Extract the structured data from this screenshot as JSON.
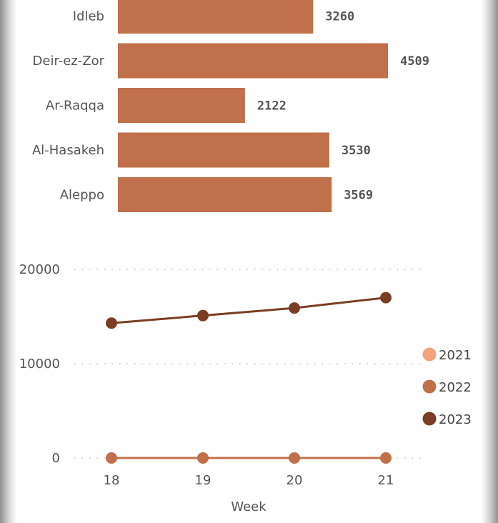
{
  "chart_data": [
    {
      "type": "bar",
      "orientation": "horizontal",
      "categories": [
        "Idleb",
        "Deir-ez-Zor",
        "Ar-Raqqa",
        "Al-Hasakeh",
        "Aleppo"
      ],
      "values": [
        3260,
        4509,
        2122,
        3530,
        3569
      ],
      "data_labels": [
        "3260",
        "4509",
        "2122",
        "3530",
        "3569"
      ],
      "bar_color": "#C0704A",
      "xlim": [
        0,
        4509
      ]
    },
    {
      "type": "line",
      "x": [
        18,
        19,
        20,
        21
      ],
      "xtick_labels": [
        "18",
        "19",
        "20",
        "21"
      ],
      "xlabel": "Week",
      "ylim": [
        0,
        20000
      ],
      "yticks": [
        0,
        10000,
        20000
      ],
      "ytick_labels": [
        "0",
        "10000",
        "20000"
      ],
      "grid": "horizontal-dotted",
      "legend_position": "right",
      "series": [
        {
          "name": "2021",
          "color": "#F4A27E",
          "values": [
            0,
            0,
            0,
            0
          ]
        },
        {
          "name": "2022",
          "color": "#C0704A",
          "values": [
            0,
            0,
            0,
            0
          ]
        },
        {
          "name": "2023",
          "color": "#7A3E24",
          "values": [
            14300,
            15100,
            15900,
            17000
          ]
        }
      ]
    }
  ]
}
